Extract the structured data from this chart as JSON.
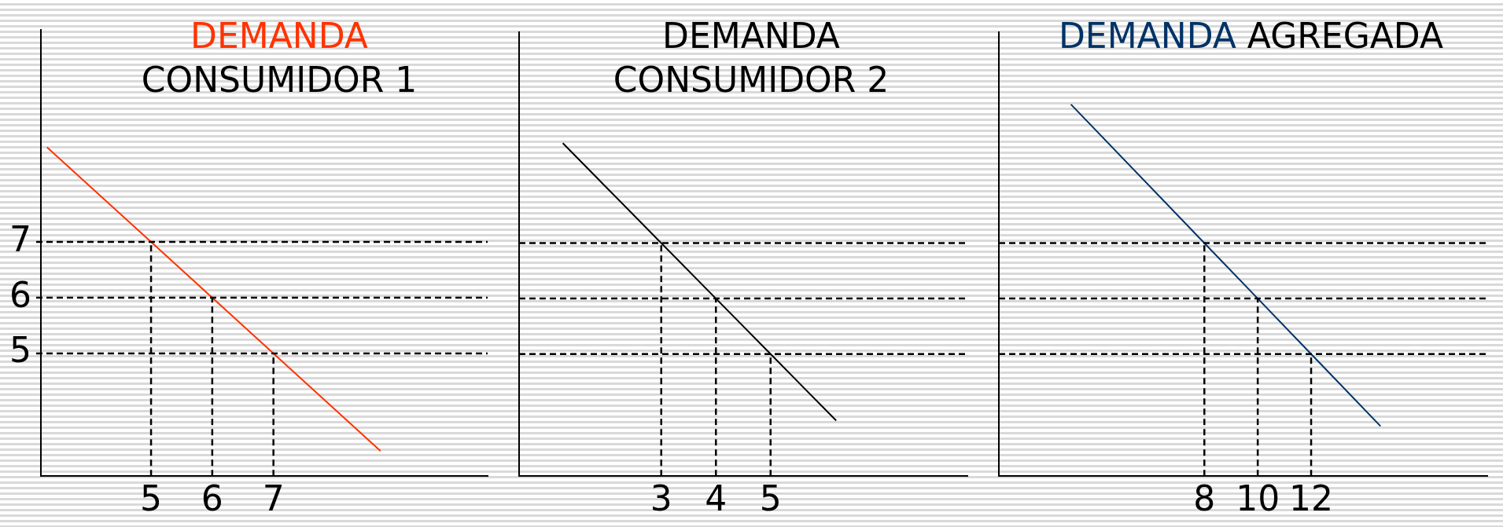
{
  "chart_data": [
    {
      "type": "line",
      "title": "DEMANDA\nCONSUMIDOR 1",
      "series": [
        {
          "color": "#ff3300",
          "x": [
            3.3,
            5,
            6,
            7,
            8.75
          ],
          "values": [
            8.7,
            7,
            6,
            5,
            3.25
          ]
        }
      ],
      "xlim": [
        3.2,
        10.5
      ],
      "ylim": [
        2.8,
        10.8
      ],
      "xticks": [
        5,
        6,
        7
      ],
      "yticks": [
        5,
        6,
        7
      ],
      "grid": false,
      "legend": false,
      "marker": "none",
      "ref_lines": [
        {
          "axis": "y",
          "value": 7,
          "line_style": "dashed"
        },
        {
          "axis": "y",
          "value": 6,
          "line_style": "dashed"
        },
        {
          "axis": "y",
          "value": 5,
          "line_style": "dashed"
        },
        {
          "axis": "x",
          "value": 5,
          "line_style": "dashed"
        },
        {
          "axis": "x",
          "value": 6,
          "line_style": "dashed"
        },
        {
          "axis": "x",
          "value": 7,
          "line_style": "dashed"
        }
      ]
    },
    {
      "type": "line",
      "title": "DEMANDA\nCONSUMIDOR 2",
      "series": [
        {
          "color": "#000000",
          "x": [
            1.2,
            3,
            4,
            5,
            6.2
          ],
          "values": [
            8.8,
            7,
            6,
            5,
            3.8
          ]
        }
      ],
      "xlim": [
        0.4,
        8.6
      ],
      "ylim": [
        2.8,
        10.8
      ],
      "xticks": [
        3,
        4,
        5
      ],
      "yticks": [
        5,
        6,
        7
      ],
      "tick_labels": "x",
      "grid": false,
      "legend": false,
      "marker": "none",
      "ref_lines": [
        {
          "axis": "y",
          "value": 7,
          "line_style": "dashed"
        },
        {
          "axis": "y",
          "value": 6,
          "line_style": "dashed"
        },
        {
          "axis": "y",
          "value": 5,
          "line_style": "dashed"
        },
        {
          "axis": "x",
          "value": 3,
          "line_style": "dashed"
        },
        {
          "axis": "x",
          "value": 4,
          "line_style": "dashed"
        },
        {
          "axis": "x",
          "value": 5,
          "line_style": "dashed"
        }
      ]
    },
    {
      "type": "line",
      "title": "DEMANDA AGREGADA",
      "series": [
        {
          "color": "#003366",
          "x": [
            3,
            8,
            10,
            12,
            14.6
          ],
          "values": [
            9.5,
            7,
            6,
            5,
            3.7
          ]
        }
      ],
      "xlim": [
        0.3,
        18.6
      ],
      "ylim": [
        2.8,
        10.8
      ],
      "xticks": [
        8,
        10,
        12
      ],
      "yticks": [
        5,
        6,
        7
      ],
      "tick_labels": "x",
      "grid": false,
      "legend": false,
      "marker": "none",
      "ref_lines": [
        {
          "axis": "y",
          "value": 7,
          "line_style": "dashed"
        },
        {
          "axis": "y",
          "value": 6,
          "line_style": "dashed"
        },
        {
          "axis": "y",
          "value": 5,
          "line_style": "dashed"
        },
        {
          "axis": "x",
          "value": 8,
          "line_style": "dashed"
        },
        {
          "axis": "x",
          "value": 10,
          "line_style": "dashed"
        },
        {
          "axis": "x",
          "value": 12,
          "line_style": "dashed"
        }
      ]
    }
  ]
}
